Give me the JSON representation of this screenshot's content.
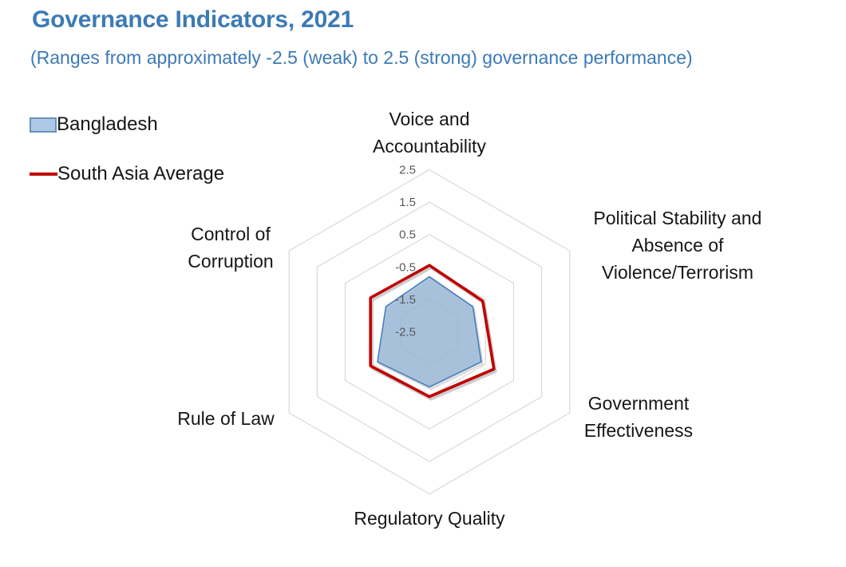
{
  "title": "Governance Indicators, 2021",
  "subtitle": "(Ranges from approximately -2.5 (weak) to 2.5 (strong) governance performance)",
  "legend": {
    "items": [
      {
        "label": "Bangladesh",
        "swatch": "filled-area"
      },
      {
        "label": "South Asia Average",
        "swatch": "line"
      }
    ]
  },
  "chart_data": {
    "type": "radar",
    "title": "Governance Indicators, 2021",
    "categories": [
      "Voice and Accountability",
      "Political Stability and Absence of Violence/Terrorism",
      "Government Effectiveness",
      "Regulatory Quality",
      "Rule of Law",
      "Control of Corruption"
    ],
    "series": [
      {
        "name": "Bangladesh",
        "style": "filled-area",
        "line_color": "#4E81BD",
        "fill_color": "#98B9D9",
        "values": [
          -0.8,
          -0.95,
          -0.65,
          -0.8,
          -0.65,
          -0.95
        ]
      },
      {
        "name": "South Asia Average",
        "style": "line",
        "line_color": "#C00000",
        "values": [
          -0.45,
          -0.6,
          -0.2,
          -0.5,
          -0.4,
          -0.4
        ]
      }
    ],
    "axis": {
      "min": -2.5,
      "max": 2.5,
      "step": 1.0,
      "tick_labels": [
        "2.5",
        "1.5",
        "0.5",
        "-0.5",
        "-1.5",
        "-2.5"
      ],
      "tick_color": "#595959"
    },
    "grid": {
      "shape": "hexagon",
      "color": "#D9D9D9",
      "rings": [
        2.5,
        1.5,
        0.5,
        -0.5,
        -1.5
      ],
      "spokes": false
    },
    "legend_position": "top-left",
    "title_color": "#3D7AB5"
  }
}
